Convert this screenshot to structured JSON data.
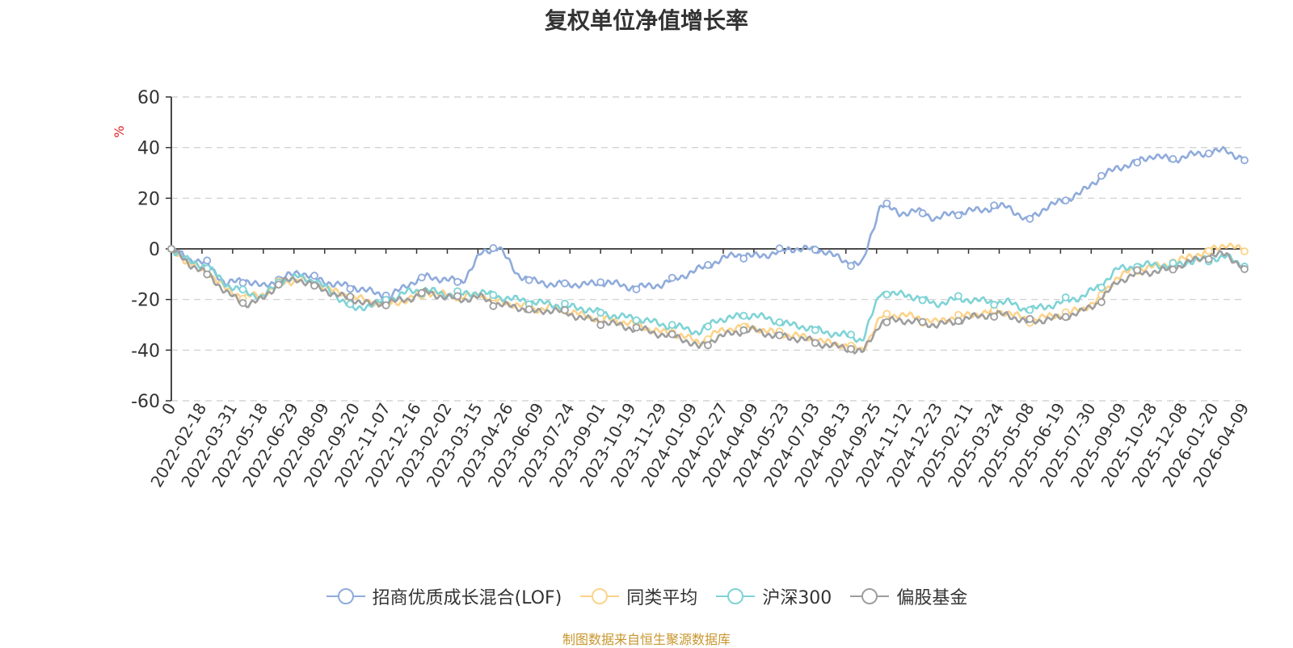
{
  "title": "复权单位净值增长率",
  "source": "制图数据来自恒生聚源数据库",
  "chart_data": {
    "type": "line",
    "title": "复权单位净值增长率",
    "ylabel": "%",
    "ylim": [
      -60,
      60
    ],
    "yticks": [
      "60",
      "40",
      "20",
      "0",
      "-20",
      "-40",
      "-60"
    ],
    "grid": true,
    "legend_position": "bottom",
    "x_tick_labels": [
      "0",
      "2022-02-18",
      "2022-03-31",
      "2022-05-18",
      "2022-06-29",
      "2022-08-09",
      "2022-09-20",
      "2022-11-07",
      "2022-12-16",
      "2023-02-02",
      "2023-03-15",
      "2023-04-26",
      "2023-06-09",
      "2023-07-24",
      "2023-09-01",
      "2023-10-19",
      "2023-11-29",
      "2024-01-09",
      "2024-02-27",
      "2024-04-09",
      "2024-05-23",
      "2024-07-03",
      "2024-08-13",
      "2024-09-25",
      "2024-11-12",
      "2024-12-23",
      "2025-02-11",
      "2025-03-24",
      "2025-05-08",
      "2025-06-19",
      "2025-07-30",
      "2025-09-09",
      "2025-10-28",
      "2025-12-08",
      "2026-01-20",
      "2026-04-09"
    ],
    "series": [
      {
        "name": "招商优质成长混合(LOF)",
        "color": "#8fabdb",
        "values": [
          0,
          -4,
          -6,
          -14,
          -12,
          -15,
          -12,
          -9,
          -12,
          -14,
          -15,
          -17,
          -19,
          -14,
          -11,
          -12,
          -13,
          -2,
          1,
          -10,
          -13,
          -14,
          -14,
          -14,
          -13,
          -15,
          -15,
          -14,
          -11,
          -8,
          -5,
          -2,
          -3,
          -2,
          0,
          0,
          -1,
          -5,
          -6,
          18,
          14,
          15,
          12,
          14,
          15,
          16,
          17,
          11,
          16,
          19,
          22,
          28,
          32,
          34,
          37,
          35,
          37,
          38,
          39,
          35
        ]
      },
      {
        "name": "同类平均",
        "color": "#fcd38a",
        "values": [
          0,
          -6,
          -9,
          -16,
          -19,
          -18,
          -14,
          -12,
          -14,
          -17,
          -19,
          -21,
          -22,
          -20,
          -17,
          -18,
          -19,
          -18,
          -21,
          -22,
          -24,
          -23,
          -25,
          -27,
          -28,
          -29,
          -31,
          -33,
          -34,
          -37,
          -33,
          -31,
          -31,
          -33,
          -34,
          -35,
          -37,
          -38,
          -40,
          -27,
          -26,
          -27,
          -29,
          -27,
          -26,
          -25,
          -25,
          -28,
          -27,
          -26,
          -24,
          -20,
          -11,
          -8,
          -7,
          -6,
          -3,
          -1,
          2,
          -1
        ]
      },
      {
        "name": "沪深300",
        "color": "#7fd3d6",
        "values": [
          0,
          -5,
          -7,
          -14,
          -17,
          -19,
          -13,
          -11,
          -13,
          -18,
          -24,
          -22,
          -20,
          -17,
          -16,
          -18,
          -18,
          -17,
          -19,
          -20,
          -21,
          -22,
          -23,
          -24,
          -26,
          -27,
          -28,
          -30,
          -31,
          -33,
          -28,
          -27,
          -26,
          -28,
          -30,
          -31,
          -33,
          -34,
          -36,
          -17,
          -18,
          -19,
          -22,
          -20,
          -20,
          -21,
          -21,
          -24,
          -23,
          -21,
          -19,
          -15,
          -8,
          -7,
          -6,
          -7,
          -5,
          -4,
          -3,
          -7
        ]
      },
      {
        "name": "偏股基金",
        "color": "#9e9e9e",
        "values": [
          0,
          -6,
          -10,
          -17,
          -22,
          -20,
          -13,
          -12,
          -15,
          -18,
          -20,
          -22,
          -21,
          -20,
          -17,
          -19,
          -20,
          -19,
          -22,
          -23,
          -25,
          -24,
          -26,
          -28,
          -29,
          -31,
          -32,
          -34,
          -35,
          -39,
          -35,
          -33,
          -32,
          -34,
          -35,
          -36,
          -38,
          -39,
          -41,
          -29,
          -28,
          -29,
          -30,
          -29,
          -27,
          -26,
          -26,
          -29,
          -28,
          -27,
          -25,
          -21,
          -13,
          -10,
          -9,
          -8,
          -5,
          -3,
          -2,
          -8
        ]
      }
    ]
  }
}
